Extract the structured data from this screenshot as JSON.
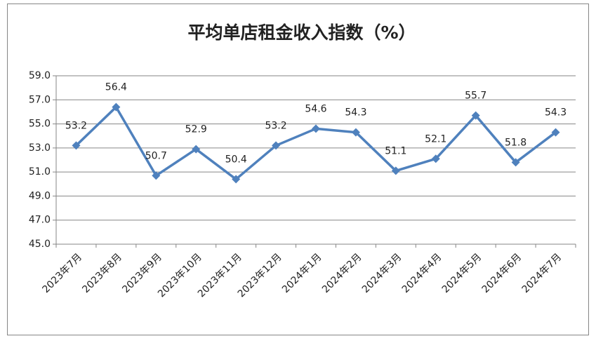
{
  "chart_data": {
    "type": "line",
    "title": "平均单店租金收入指数（%）",
    "categories": [
      "2023年7月",
      "2023年8月",
      "2023年9月",
      "2023年10月",
      "2023年11月",
      "2023年12月",
      "2024年1月",
      "2024年2月",
      "2024年3月",
      "2024年4月",
      "2024年5月",
      "2024年6月",
      "2024年7月"
    ],
    "series": [
      {
        "name": "平均单店租金收入指数",
        "color": "#4f81bd",
        "values": [
          53.2,
          56.4,
          50.7,
          52.9,
          50.4,
          53.2,
          54.6,
          54.3,
          51.1,
          52.1,
          55.7,
          51.8,
          54.3
        ]
      }
    ],
    "ylim": [
      45,
      59
    ],
    "yticks": [
      {
        "value": 45,
        "label": "45.0"
      },
      {
        "value": 47,
        "label": "47.0"
      },
      {
        "value": 49,
        "label": "49.0"
      },
      {
        "value": 51,
        "label": "51.0"
      },
      {
        "value": 53,
        "label": "53.0"
      },
      {
        "value": 55,
        "label": "55.0"
      },
      {
        "value": 57,
        "label": "57.0"
      },
      {
        "value": 59,
        "label": "59.0"
      }
    ],
    "grid": true
  }
}
